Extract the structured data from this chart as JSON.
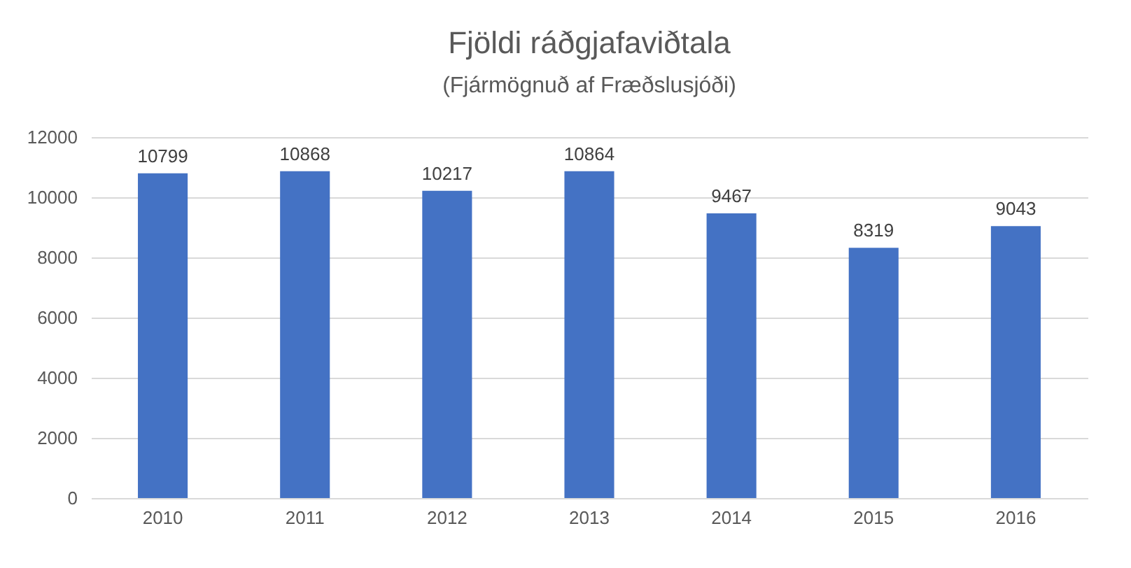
{
  "chart_data": {
    "type": "bar",
    "title": "Fjöldi ráðgjafaviðtala",
    "subtitle": "(Fjármögnuð af Fræðslusjóði)",
    "categories": [
      "2010",
      "2011",
      "2012",
      "2013",
      "2014",
      "2015",
      "2016"
    ],
    "values": [
      10799,
      10868,
      10217,
      10864,
      9467,
      8319,
      9043
    ],
    "color": "#4472c4",
    "ylim": [
      0,
      12000
    ],
    "yticks": [
      0,
      2000,
      4000,
      6000,
      8000,
      10000,
      12000
    ],
    "grid": "y",
    "data_labels": true
  }
}
